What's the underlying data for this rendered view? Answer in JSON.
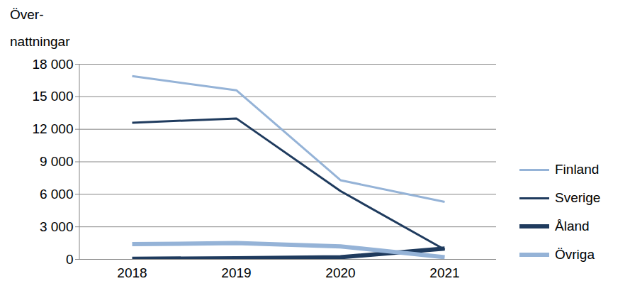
{
  "chart_data": {
    "type": "line",
    "y_label": "Över-\nnattningar",
    "categories": [
      "2018",
      "2019",
      "2020",
      "2021"
    ],
    "series": [
      {
        "name": "Finland",
        "color": "#95b3d7",
        "line_style": "solid",
        "values": [
          16900,
          15600,
          7300,
          5300
        ]
      },
      {
        "name": "Sverige",
        "color": "#1f3b5e",
        "line_style": "solid",
        "values": [
          12600,
          13000,
          6300,
          900
        ]
      },
      {
        "name": "Åland",
        "color": "#1f3b5e",
        "line_style": "thick",
        "values": [
          50,
          100,
          200,
          1000
        ]
      },
      {
        "name": "Övriga",
        "color": "#95b3d7",
        "line_style": "thick",
        "values": [
          1400,
          1500,
          1200,
          200
        ]
      }
    ],
    "ylim": [
      0,
      18000
    ],
    "yticks": [
      0,
      {
        "value": 3000,
        "label": "3 000"
      },
      {
        "value": 6000,
        "label": "6 000"
      },
      {
        "value": 9000,
        "label": "9 000"
      },
      {
        "value": 12000,
        "label": "12 000"
      },
      {
        "value": 15000,
        "label": "15 000"
      },
      {
        "value": 18000,
        "label": "18 000"
      }
    ],
    "grid": true,
    "legend": "right"
  }
}
